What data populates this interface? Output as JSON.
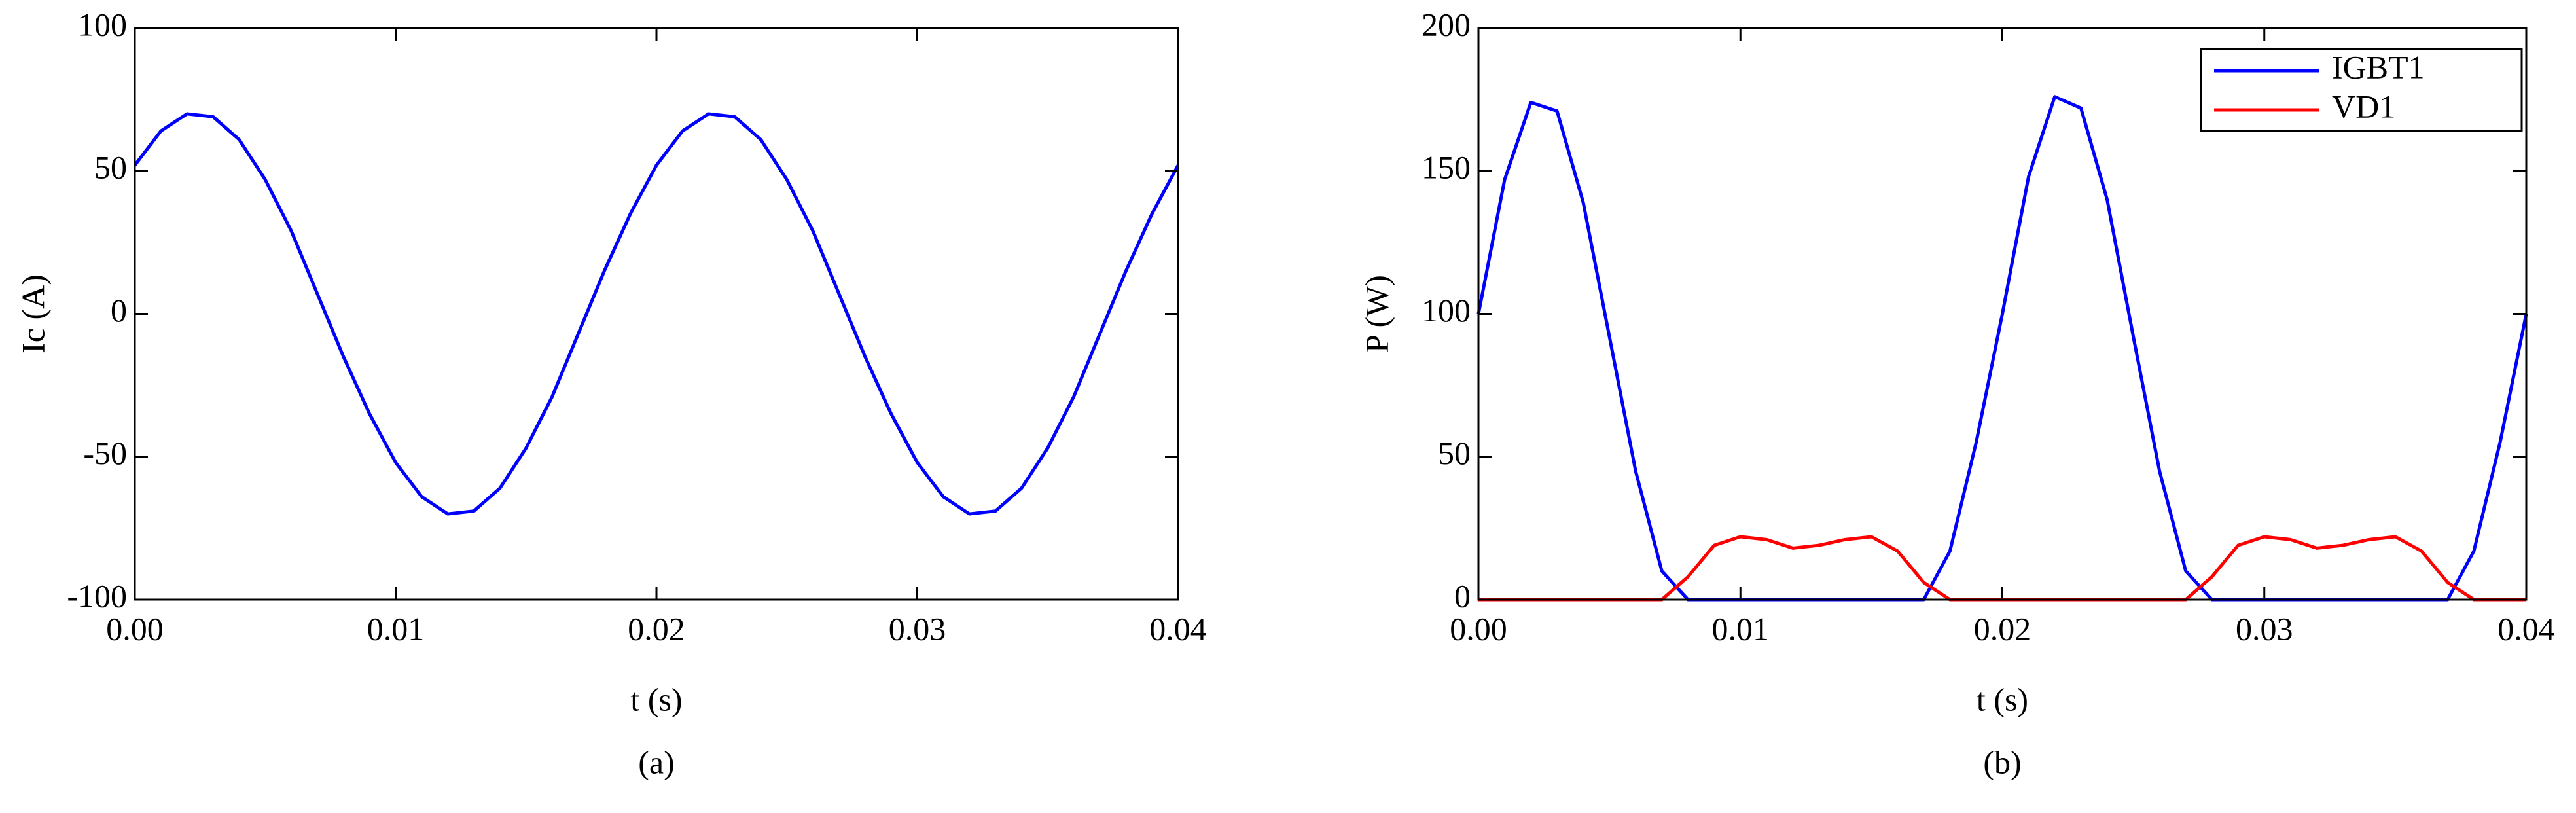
{
  "chart_data": [
    {
      "type": "line",
      "caption": "(a)",
      "xlabel": "t (s)",
      "ylabel": "Ic (A)",
      "x": [
        0,
        0.001,
        0.002,
        0.003,
        0.004,
        0.005,
        0.006,
        0.007,
        0.008,
        0.009,
        0.01,
        0.011,
        0.012,
        0.013,
        0.014,
        0.015,
        0.016,
        0.017,
        0.018,
        0.019,
        0.02,
        0.021,
        0.022,
        0.023,
        0.024,
        0.025,
        0.026,
        0.027,
        0.028,
        0.029,
        0.03,
        0.031,
        0.032,
        0.033,
        0.034,
        0.035,
        0.036,
        0.037,
        0.038,
        0.039,
        0.04
      ],
      "values": [
        52,
        64,
        70,
        69,
        61,
        47,
        29,
        7,
        -15,
        -35,
        -52,
        -64,
        -70,
        -69,
        -61,
        -47,
        -29,
        -7,
        15,
        35,
        52,
        64,
        70,
        69,
        61,
        47,
        29,
        7,
        -15,
        -35,
        -52,
        -64,
        -70,
        -69,
        -61,
        -47,
        -29,
        -7,
        15,
        35,
        52
      ],
      "color": "#0000ff",
      "xlim": [
        0,
        0.04
      ],
      "xticks": [
        {
          "value": 0,
          "label": "0.00"
        },
        0.01,
        0.02,
        0.03,
        0.04
      ],
      "ylim": [
        -100,
        100
      ],
      "yticks": [
        -100,
        -50,
        0,
        50,
        100
      ]
    },
    {
      "type": "line",
      "caption": "(b)",
      "xlabel": "t (s)",
      "ylabel": "P (W)",
      "x": [
        0,
        0.001,
        0.002,
        0.003,
        0.004,
        0.005,
        0.006,
        0.007,
        0.008,
        0.009,
        0.01,
        0.011,
        0.012,
        0.013,
        0.014,
        0.015,
        0.016,
        0.017,
        0.018,
        0.019,
        0.02,
        0.021,
        0.022,
        0.023,
        0.024,
        0.025,
        0.026,
        0.027,
        0.028,
        0.029,
        0.03,
        0.031,
        0.032,
        0.033,
        0.034,
        0.035,
        0.036,
        0.037,
        0.038,
        0.039,
        0.04
      ],
      "series": [
        {
          "name": "IGBT1",
          "color": "#0000ff",
          "values": [
            100,
            147,
            174,
            171,
            139,
            92,
            45,
            10,
            0,
            0,
            0,
            0,
            0,
            0,
            0,
            0,
            0,
            0,
            17,
            55,
            100,
            148,
            176,
            172,
            140,
            92,
            45,
            10,
            0,
            0,
            0,
            0,
            0,
            0,
            0,
            0,
            0,
            0,
            17,
            55,
            100
          ]
        },
        {
          "name": "VD1",
          "color": "#ff0000",
          "values": [
            0,
            0,
            0,
            0,
            0,
            0,
            0,
            0,
            8,
            19,
            22,
            21,
            18,
            19,
            21,
            22,
            17,
            6,
            0,
            0,
            0,
            0,
            0,
            0,
            0,
            0,
            0,
            0,
            8,
            19,
            22,
            21,
            18,
            19,
            21,
            22,
            17,
            6,
            0,
            0,
            0
          ]
        }
      ],
      "xlim": [
        0,
        0.04
      ],
      "xticks": [
        {
          "value": 0,
          "label": "0.00"
        },
        0.01,
        0.02,
        0.03,
        0.04
      ],
      "ylim": [
        0,
        200
      ],
      "yticks": [
        0,
        50,
        100,
        150,
        200
      ],
      "legend": "upper-right"
    }
  ]
}
